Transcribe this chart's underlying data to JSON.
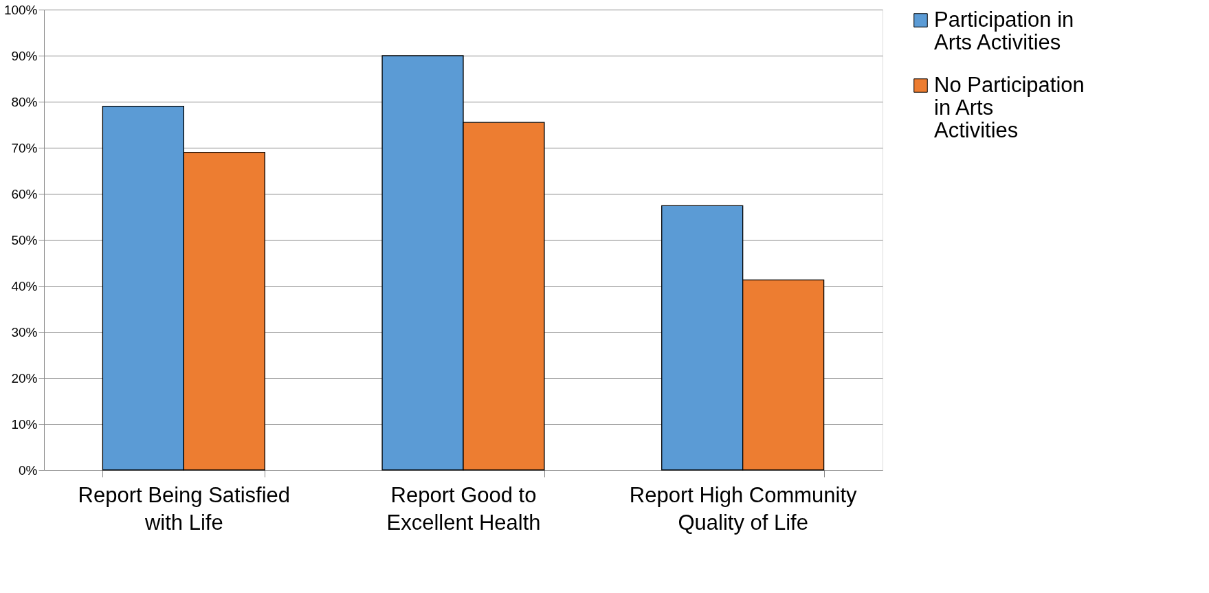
{
  "chart_data": {
    "type": "bar",
    "categories": [
      "Report Being Satisfied with Life",
      "Report Good to Excellent Health",
      "Report High Community Quality of Life"
    ],
    "series": [
      {
        "name": "Participation in Arts Activities",
        "color": "#5b9bd5",
        "values": [
          79,
          90,
          57.4
        ]
      },
      {
        "name": "No Participation in Arts Activities",
        "color": "#ed7d31",
        "values": [
          69,
          75.5,
          41.3
        ]
      }
    ],
    "ylim": [
      0,
      100
    ],
    "yticks": [
      {
        "value": 0,
        "label": "0%"
      },
      {
        "value": 10,
        "label": "10%"
      },
      {
        "value": 20,
        "label": "20%"
      },
      {
        "value": 30,
        "label": "30%"
      },
      {
        "value": 40,
        "label": "40%"
      },
      {
        "value": 50,
        "label": "50%"
      },
      {
        "value": 60,
        "label": "60%"
      },
      {
        "value": 70,
        "label": "70%"
      },
      {
        "value": 80,
        "label": "80%"
      },
      {
        "value": 90,
        "label": "90%"
      },
      {
        "value": 100,
        "label": "100%"
      }
    ],
    "grid": "y",
    "legend": "right"
  }
}
